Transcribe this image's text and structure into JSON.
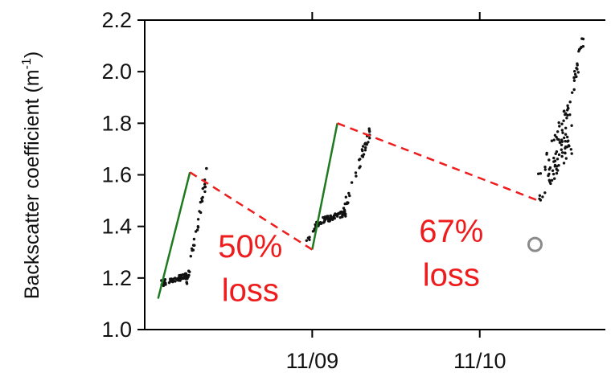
{
  "chart_data": {
    "type": "scatter",
    "title": "",
    "xlabel": "",
    "ylabel": "Backscatter coefficient (m",
    "ylabel_superscript": "-1",
    "ylabel_close": ")",
    "xlim": [
      0,
      2.75
    ],
    "ylim": [
      1.0,
      2.2
    ],
    "x_ticks": [
      {
        "value": 1,
        "label": "11/09"
      },
      {
        "value": 2,
        "label": "11/10"
      }
    ],
    "y_ticks": [
      {
        "value": 1.0,
        "label": "1.0"
      },
      {
        "value": 1.2,
        "label": "1.2"
      },
      {
        "value": 1.4,
        "label": "1.4"
      },
      {
        "value": 1.6,
        "label": "1.6"
      },
      {
        "value": 1.8,
        "label": "1.8"
      },
      {
        "value": 2.0,
        "label": "2.0"
      },
      {
        "value": 2.2,
        "label": "2.2"
      }
    ],
    "grid": false,
    "scatter_color": "#111111",
    "clusters": [
      {
        "x_start": 0.1,
        "x_end": 0.26,
        "y_start": 1.18,
        "y_end": 1.21,
        "n": 55,
        "spread": 0.012
      },
      {
        "x_start": 0.25,
        "x_end": 0.27,
        "y_start": 1.17,
        "y_end": 1.24,
        "n": 8,
        "spread": 0.015
      },
      {
        "x_start": 0.27,
        "x_end": 0.37,
        "y_start": 1.25,
        "y_end": 1.6,
        "n": 28,
        "spread": 0.03
      },
      {
        "x_start": 0.96,
        "x_end": 1.04,
        "y_start": 1.33,
        "y_end": 1.42,
        "n": 14,
        "spread": 0.015
      },
      {
        "x_start": 1.04,
        "x_end": 1.2,
        "y_start": 1.42,
        "y_end": 1.45,
        "n": 55,
        "spread": 0.012
      },
      {
        "x_start": 1.18,
        "x_end": 1.35,
        "y_start": 1.45,
        "y_end": 1.78,
        "n": 38,
        "spread": 0.025
      },
      {
        "x_start": 2.35,
        "x_end": 2.55,
        "y_start": 1.55,
        "y_end": 1.84,
        "n": 55,
        "spread": 0.08
      },
      {
        "x_start": 2.4,
        "x_end": 2.55,
        "y_start": 1.58,
        "y_end": 1.72,
        "n": 30,
        "spread": 0.04
      },
      {
        "x_start": 2.52,
        "x_end": 2.62,
        "y_start": 1.85,
        "y_end": 2.12,
        "n": 25,
        "spread": 0.04
      }
    ],
    "growth_lines": [
      {
        "x1": 0.08,
        "y1": 1.12,
        "x2": 0.27,
        "y2": 1.61
      },
      {
        "x1": 1.0,
        "y1": 1.31,
        "x2": 1.15,
        "y2": 1.8
      }
    ],
    "growth_color": "#1e7a1e",
    "loss_lines": [
      {
        "x1": 0.27,
        "y1": 1.61,
        "x2": 1.0,
        "y2": 1.31
      },
      {
        "x1": 1.15,
        "y1": 1.8,
        "x2": 2.35,
        "y2": 1.5
      }
    ],
    "loss_color": "#ee1c1c",
    "annotations": [
      {
        "line1": "50%",
        "line2": "loss",
        "x": 0.63,
        "y1": 1.28,
        "y2": 1.11
      },
      {
        "line1": "67%",
        "line2": "loss",
        "x": 1.83,
        "y1": 1.34,
        "y2": 1.17
      }
    ],
    "open_marker": {
      "x": 2.33,
      "y": 1.33,
      "color": "#8a8a8a"
    }
  }
}
